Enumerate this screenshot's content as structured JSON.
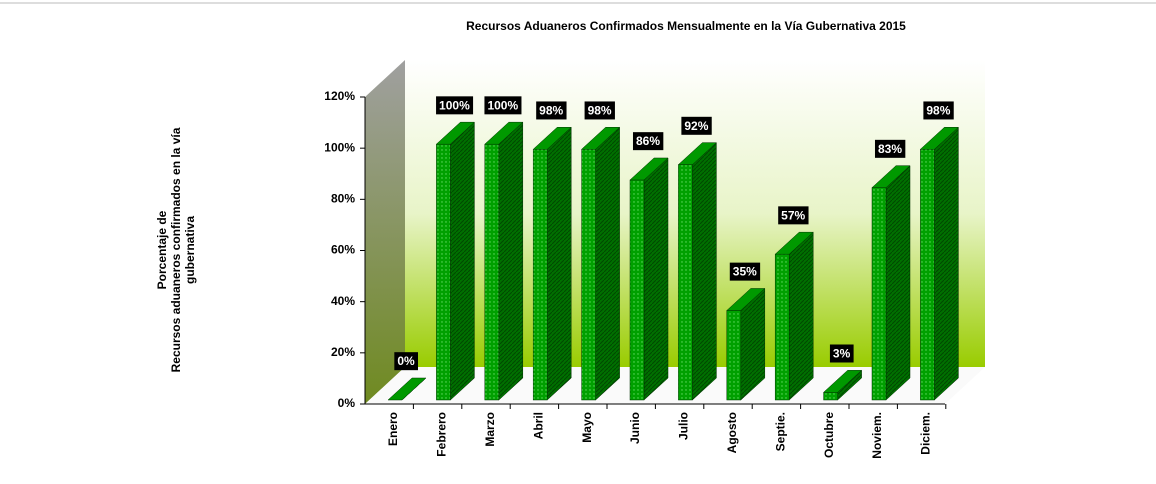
{
  "chart_data": {
    "type": "bar3d",
    "title": "Recursos Aduaneros Confirmados Mensualmente en la Vía Gubernativa 2015",
    "ylabel": [
      "Porcentaje de",
      "Recursos aduaneros confirmados en la vía",
      "gubernativa"
    ],
    "categories": [
      "Enero",
      "Febrero",
      "Marzo",
      "Abril",
      "Mayo",
      "Junio",
      "Julio",
      "Agosto",
      "Septie.",
      "Octubre",
      "Noviem.",
      "Diciem."
    ],
    "values": [
      0,
      100,
      100,
      98,
      98,
      86,
      92,
      35,
      57,
      3,
      83,
      98
    ],
    "value_labels": [
      "0%",
      "100%",
      "100%",
      "98%",
      "98%",
      "86%",
      "92%",
      "35%",
      "57%",
      "3%",
      "83%",
      "98%"
    ],
    "color": "#009900",
    "ylim": [
      0,
      120
    ],
    "yticks": [
      {
        "value": 0,
        "label": "0%"
      },
      {
        "value": 20,
        "label": "20%"
      },
      {
        "value": 40,
        "label": "40%"
      },
      {
        "value": 60,
        "label": "60%"
      },
      {
        "value": 80,
        "label": "80%"
      },
      {
        "value": 100,
        "label": "100%"
      },
      {
        "value": 120,
        "label": "120%"
      }
    ]
  }
}
